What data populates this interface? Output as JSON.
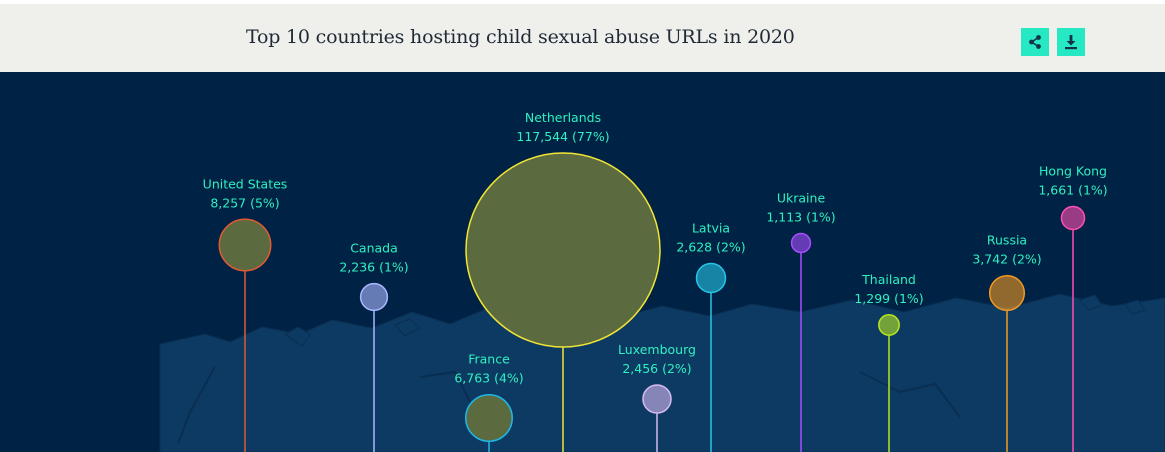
{
  "header": {
    "title": "Top 10 countries hosting child sexual abuse URLs in 2020",
    "share_icon": "share-icon",
    "download_icon": "download-icon"
  },
  "chart_data": {
    "type": "bubble",
    "title": "Top 10 countries hosting child sexual abuse URLs in 2020",
    "background": "#002244",
    "points": [
      {
        "country": "United States",
        "value": 8257,
        "label": "8,257 (5%)",
        "color": "#e05a33"
      },
      {
        "country": "Canada",
        "value": 2236,
        "label": "2,236 (1%)",
        "color": "#a9b7ff"
      },
      {
        "country": "France",
        "value": 6763,
        "label": "6,763 (4%)",
        "color": "#1fb8e8"
      },
      {
        "country": "Netherlands",
        "value": 117544,
        "label": "117,544 (77%)",
        "color": "#f2e535"
      },
      {
        "country": "Luxembourg",
        "value": 2456,
        "label": "2,456 (2%)",
        "color": "#d6b9f0"
      },
      {
        "country": "Latvia",
        "value": 2628,
        "label": "2,628 (2%)",
        "color": "#27c6e6"
      },
      {
        "country": "Ukraine",
        "value": 1113,
        "label": "1,113 (1%)",
        "color": "#a64dff"
      },
      {
        "country": "Thailand",
        "value": 1299,
        "label": "1,299 (1%)",
        "color": "#b7e61f"
      },
      {
        "country": "Russia",
        "value": 3742,
        "label": "3,742 (2%)",
        "color": "#f29a1f"
      },
      {
        "country": "Hong Kong",
        "value": 1661,
        "label": "1,661 (1%)",
        "color": "#ff4fb0"
      }
    ],
    "label_color": "#2ff0c0"
  }
}
